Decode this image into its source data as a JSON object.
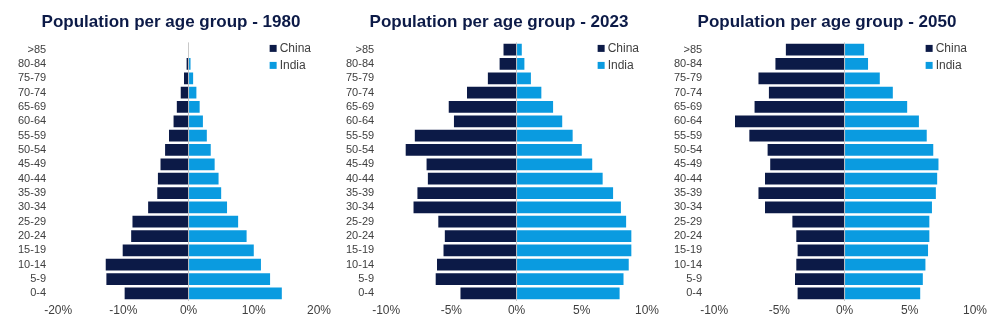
{
  "chart_data": [
    {
      "type": "bar",
      "title": "Population per age group - 1980",
      "orientation": "horizontal",
      "stacked": true,
      "legend": "top right",
      "categories": [
        ">85",
        "80-84",
        "75-79",
        "70-74",
        "65-69",
        "60-64",
        "55-59",
        "50-54",
        "45-49",
        "40-44",
        "35-39",
        "30-34",
        "25-29",
        "20-24",
        "15-19",
        "10-14",
        "5-9",
        "0-4"
      ],
      "xlim": [
        -20,
        20
      ],
      "xticks": [
        {
          "value": -20,
          "label": "-20%"
        },
        {
          "value": -10,
          "label": "-10%"
        },
        {
          "value": 0,
          "label": "0%"
        },
        {
          "value": 10,
          "label": "10%"
        },
        {
          "value": 20,
          "label": "20%"
        }
      ],
      "series": [
        {
          "name": "China",
          "color": "#0c1a47",
          "values": [
            0,
            -0.3,
            -0.7,
            -1.2,
            -1.8,
            -2.3,
            -3.0,
            -3.6,
            -4.3,
            -4.7,
            -4.8,
            -6.2,
            -8.6,
            -8.8,
            -10.1,
            -12.7,
            -12.6,
            -9.8
          ]
        },
        {
          "name": "India",
          "color": "#0a9be0",
          "values": [
            null,
            0.3,
            0.7,
            1.2,
            1.7,
            2.2,
            2.8,
            3.4,
            4.0,
            4.6,
            5.0,
            5.9,
            7.6,
            8.9,
            10.0,
            11.1,
            12.5,
            14.3
          ]
        }
      ]
    },
    {
      "type": "bar",
      "title": "Population per age group - 2023",
      "orientation": "horizontal",
      "stacked": true,
      "legend": "top right",
      "categories": [
        ">85",
        "80-84",
        "75-79",
        "70-74",
        "65-69",
        "60-64",
        "55-59",
        "50-54",
        "45-49",
        "40-44",
        "35-39",
        "30-34",
        "25-29",
        "20-24",
        "15-19",
        "10-14",
        "5-9",
        "0-4"
      ],
      "xlim": [
        -10,
        10
      ],
      "xticks": [
        {
          "value": -10,
          "label": "-10%"
        },
        {
          "value": -5,
          "label": "-5%"
        },
        {
          "value": 0,
          "label": "0%"
        },
        {
          "value": 5,
          "label": "5%"
        },
        {
          "value": 10,
          "label": "10%"
        }
      ],
      "series": [
        {
          "name": "China",
          "color": "#0c1a47",
          "values": [
            -1.0,
            -1.3,
            -2.2,
            -3.8,
            -5.2,
            -4.8,
            -7.8,
            -8.5,
            -6.9,
            -6.8,
            -7.6,
            -7.9,
            -6.0,
            -5.5,
            -5.6,
            -6.1,
            -6.2,
            -4.3
          ]
        },
        {
          "name": "India",
          "color": "#0a9be0",
          "values": [
            0.4,
            0.6,
            1.1,
            1.9,
            2.8,
            3.5,
            4.3,
            5.0,
            5.8,
            6.6,
            7.4,
            8.0,
            8.4,
            8.8,
            8.8,
            8.6,
            8.2,
            7.9
          ]
        }
      ]
    },
    {
      "type": "bar",
      "title": "Population per age group - 2050",
      "orientation": "horizontal",
      "stacked": true,
      "legend": "top right",
      "categories": [
        ">85",
        "80-84",
        "75-79",
        "70-74",
        "65-69",
        "60-64",
        "55-59",
        "50-54",
        "45-49",
        "40-44",
        "35-39",
        "30-34",
        "25-29",
        "20-24",
        "15-19",
        "10-14",
        "5-9",
        "0-4"
      ],
      "xlim": [
        -10,
        10
      ],
      "xticks": [
        {
          "value": -10,
          "label": "-10%"
        },
        {
          "value": -5,
          "label": "-5%"
        },
        {
          "value": 0,
          "label": "0%"
        },
        {
          "value": 5,
          "label": "5%"
        },
        {
          "value": 10,
          "label": "10%"
        }
      ],
      "series": [
        {
          "name": "China",
          "color": "#0c1a47",
          "values": [
            -4.5,
            -5.3,
            -6.6,
            -5.8,
            -6.9,
            -8.4,
            -7.3,
            -5.9,
            -5.7,
            -6.1,
            -6.6,
            -6.1,
            -4.0,
            -3.7,
            -3.6,
            -3.7,
            -3.8,
            -3.6
          ]
        },
        {
          "name": "India",
          "color": "#0a9be0",
          "values": [
            1.5,
            1.8,
            2.7,
            3.7,
            4.8,
            5.7,
            6.3,
            6.8,
            7.2,
            7.1,
            7.0,
            6.7,
            6.5,
            6.5,
            6.4,
            6.2,
            6.0,
            5.8
          ]
        }
      ]
    }
  ]
}
